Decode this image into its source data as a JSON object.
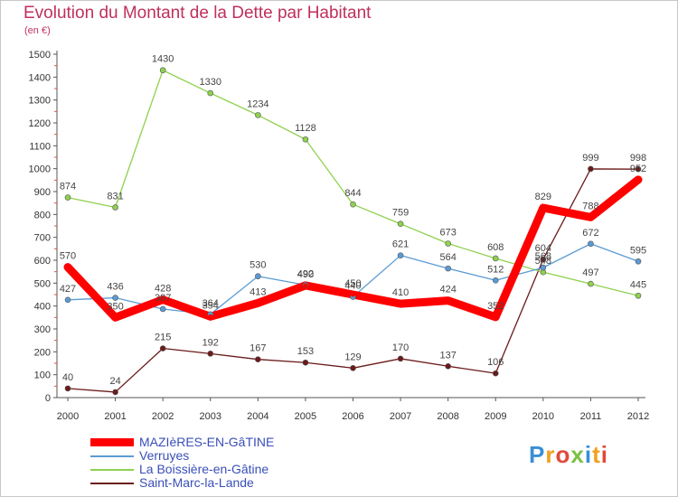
{
  "header": {
    "title": "Evolution du Montant de la Dette par Habitant",
    "subtitle": "(en €)"
  },
  "logo": {
    "text": "Proxiti",
    "letter_colors": [
      "#3a8fd6",
      "#f0a020",
      "#e04a3a",
      "#7ac142",
      "#3a8fd6",
      "#f0a020",
      "#e04a3a"
    ]
  },
  "chart_data": {
    "type": "line",
    "title": "Evolution du Montant de la Dette par Habitant",
    "subtitle": "(en €)",
    "xlabel": "",
    "ylabel": "",
    "x": [
      "2000",
      "2001",
      "2002",
      "2003",
      "2004",
      "2005",
      "2006",
      "2007",
      "2008",
      "2009",
      "2010",
      "2011",
      "2012"
    ],
    "ylim": [
      0,
      1500
    ],
    "yticks": [
      0,
      100,
      200,
      300,
      400,
      500,
      600,
      700,
      800,
      900,
      1000,
      1100,
      1200,
      1300,
      1400,
      1500
    ],
    "grid": false,
    "legend_position": "bottom-left",
    "series": [
      {
        "name": "Saint-Marc-la-Lande",
        "color": "#6b1a1a",
        "values": [
          40,
          24,
          215,
          192,
          167,
          153,
          129,
          170,
          137,
          106,
          604,
          999,
          998
        ],
        "labels": [
          "40",
          "24",
          "215",
          "192",
          "167",
          "153",
          "129",
          "170",
          "137",
          "106",
          "604",
          "999",
          "998"
        ]
      },
      {
        "name": "La Boissière-en-Gâtine",
        "color": "#8fd14f",
        "values": [
          874,
          831,
          1430,
          1330,
          1234,
          1128,
          844,
          759,
          673,
          608,
          548,
          497,
          445
        ],
        "labels": [
          "874",
          "831",
          "1430",
          "1330",
          "1234",
          "1128",
          "844",
          "759",
          "673",
          "608",
          "548",
          "497",
          "445"
        ]
      },
      {
        "name": "Verruyes",
        "color": "#5b9bd5",
        "values": [
          427,
          436,
          387,
          364,
          530,
          492,
          440,
          621,
          564,
          512,
          568,
          672,
          595
        ],
        "labels": [
          "427",
          "436",
          "387",
          "364",
          "530",
          "492",
          "440",
          "621",
          "564",
          "512",
          "568",
          "672",
          "595"
        ]
      },
      {
        "name": "MAZIèRES-EN-GâTINE",
        "color": "#ff0000",
        "values": [
          570,
          350,
          428,
          354,
          413,
          490,
          450,
          410,
          424,
          352,
          829,
          788,
          952
        ],
        "labels": [
          "570",
          "350",
          "428",
          "354",
          "413",
          "490",
          "450",
          "410",
          "424",
          "352",
          "829",
          "788",
          "952"
        ]
      }
    ],
    "legend_order": [
      "MAZIèRES-EN-GâTINE",
      "Verruyes",
      "La Boissière-en-Gâtine",
      "Saint-Marc-la-Lande"
    ]
  }
}
